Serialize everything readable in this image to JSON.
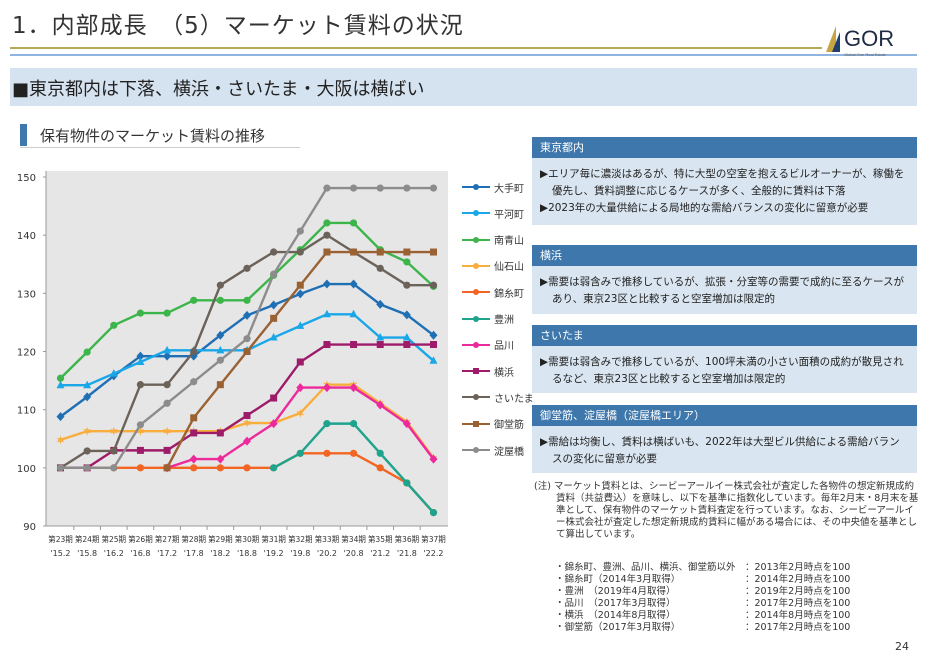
{
  "header": {
    "title": "1．内部成長　（5）マーケット賃料の状況",
    "logo_text": "GOR",
    "logo_sub": "Global One Real Estate Investment Corp."
  },
  "banner": {
    "text": "■東京都内は下落、横浜・さいたま・大阪は横ばい"
  },
  "section": {
    "title": "保有物件のマーケット賃料の推移"
  },
  "colors": {
    "accent": "#3d77ac",
    "banner_bg": "#d5e3f0",
    "plot_bg": "#e6e6e6"
  },
  "chart_data": {
    "type": "line",
    "title": "",
    "ylim": [
      90,
      150
    ],
    "yticks": [
      "90",
      "100",
      "110",
      "120",
      "130",
      "140",
      "150"
    ],
    "categories": [
      "第23期",
      "第24期",
      "第25期",
      "第26期",
      "第27期",
      "第28期",
      "第29期",
      "第30期",
      "第31期",
      "第32期",
      "第33期",
      "第34期",
      "第35期",
      "第36期",
      "第37期"
    ],
    "categories2": [
      "'15.2",
      "'15.8",
      "'16.2",
      "'16.8",
      "'17.2",
      "'17.8",
      "'18.2",
      "'18.8",
      "'19.2",
      "'19.8",
      "'20.2",
      "'20.8",
      "'21.2",
      "'21.8",
      "'22.2"
    ],
    "grid": false,
    "legend": "right",
    "series": [
      {
        "name": "大手町",
        "color": "#1f6fb5",
        "marker": "diamond",
        "values": [
          108.8,
          112.2,
          115.8,
          119.2,
          119.2,
          119.2,
          122.8,
          126.2,
          128.0,
          129.9,
          131.6,
          131.6,
          128.1,
          126.3,
          122.8
        ]
      },
      {
        "name": "平河町",
        "color": "#1aa7e8",
        "marker": "triangle",
        "values": [
          114.2,
          114.2,
          116.2,
          118.2,
          120.2,
          120.2,
          120.2,
          120.2,
          122.4,
          124.4,
          126.4,
          126.4,
          122.4,
          122.4,
          118.4
        ]
      },
      {
        "name": "南青山",
        "color": "#3cb54a",
        "marker": "circle",
        "values": [
          115.4,
          119.9,
          124.5,
          126.6,
          126.6,
          128.8,
          128.8,
          128.8,
          133.1,
          137.5,
          142.1,
          142.1,
          137.5,
          135.4,
          131.2
        ]
      },
      {
        "name": "仙石山",
        "color": "#f9ad3c",
        "marker": "star",
        "values": [
          104.8,
          106.3,
          106.3,
          106.3,
          106.3,
          106.3,
          106.3,
          107.7,
          107.7,
          109.4,
          114.3,
          114.3,
          111.1,
          107.9,
          101.7
        ]
      },
      {
        "name": "錦糸町",
        "color": "#f26522",
        "marker": "circle",
        "values": [
          100,
          100,
          100,
          100,
          100,
          100,
          100,
          100,
          100,
          102.5,
          102.5,
          102.5,
          100,
          97.4,
          92.3
        ]
      },
      {
        "name": "豊洲",
        "color": "#1ea38c",
        "marker": "circle",
        "values": [
          null,
          null,
          null,
          null,
          null,
          null,
          null,
          null,
          100,
          102.5,
          107.6,
          107.6,
          102.5,
          97.4,
          92.3
        ]
      },
      {
        "name": "品川",
        "color": "#ec2a9b",
        "marker": "diamond",
        "values": [
          null,
          null,
          null,
          null,
          100,
          101.5,
          101.5,
          104.6,
          107.6,
          113.8,
          113.8,
          113.8,
          110.8,
          107.6,
          101.5
        ]
      },
      {
        "name": "横浜",
        "color": "#9e1b6a",
        "marker": "square",
        "values": [
          100,
          100,
          103,
          103,
          103,
          106,
          106,
          109,
          112,
          118.2,
          121.2,
          121.2,
          121.2,
          121.2,
          121.2
        ]
      },
      {
        "name": "さいたま",
        "color": "#6b6259",
        "marker": "circle",
        "values": [
          100,
          102.9,
          102.9,
          114.3,
          114.3,
          120,
          131.4,
          134.3,
          137.1,
          137.1,
          140,
          137.1,
          134.3,
          131.4,
          131.4
        ]
      },
      {
        "name": "御堂筋",
        "color": "#9a6233",
        "marker": "square",
        "values": [
          null,
          null,
          null,
          null,
          100,
          108.6,
          114.3,
          120,
          125.7,
          131.4,
          137.1,
          137.1,
          137.1,
          137.1,
          137.1
        ]
      },
      {
        "name": "淀屋橋",
        "color": "#8c8c8c",
        "marker": "circle",
        "values": [
          100,
          100,
          100,
          107.4,
          111.1,
          114.8,
          118.5,
          122.2,
          133.3,
          140.7,
          148.1,
          148.1,
          148.1,
          148.1,
          148.1
        ]
      }
    ]
  },
  "panels": [
    {
      "title": "東京都内",
      "bullets": [
        "▶エリア毎に濃淡はあるが、特に大型の空室を抱えるビルオーナーが、稼働を優先し、賃料調整に応じるケースが多く、全般的に賃料は下落",
        "▶2023年の大量供給による局地的な需給バランスの変化に留意が必要"
      ]
    },
    {
      "title": "横浜",
      "bullets": [
        "▶需要は弱含みで推移しているが、拡張・分室等の需要で成約に至るケースがあり、東京23区と比較すると空室増加は限定的"
      ]
    },
    {
      "title": "さいたま",
      "bullets": [
        "▶需要は弱含みで推移しているが、100坪未満の小さい面積の成約が散見されるなど、東京23区と比較すると空室増加は限定的"
      ]
    },
    {
      "title": "御堂筋、淀屋橋（淀屋橋エリア）",
      "bullets": [
        "▶需給は均衡し、賃料は横ばいも、2022年は大型ビル供給による需給バランスの変化に留意が必要"
      ]
    }
  ],
  "note": {
    "text": "(注) マーケット賃料とは、シービーアールイー株式会社が査定した各物件の想定新規成約賃料（共益費込）を意味し、以下を基準に指数化しています。毎年2月末・8月末を基準として、保有物件のマーケット賃料査定を行っています。なお、シービーアールイー株式会社が査定した想定新規成約賃料に幅がある場合には、その中央値を基準として算出しています。",
    "rows": [
      {
        "l": "・錦糸町、豊洲、品川、横浜、御堂筋以外",
        "r": "：2013年2月時点を100"
      },
      {
        "l": "・錦糸町（2014年3月取得）",
        "r": "：2014年2月時点を100"
      },
      {
        "l": "・豊洲　（2019年4月取得）",
        "r": "：2019年2月時点を100"
      },
      {
        "l": "・品川　（2017年3月取得）",
        "r": "：2017年2月時点を100"
      },
      {
        "l": "・横浜　（2014年8月取得）",
        "r": "：2014年8月時点を100"
      },
      {
        "l": "・御堂筋（2017年3月取得）",
        "r": "：2017年2月時点を100"
      }
    ]
  },
  "page_number": "24"
}
